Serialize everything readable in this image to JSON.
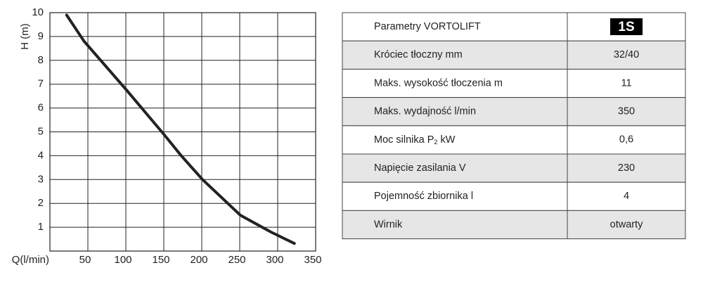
{
  "chart_data": {
    "type": "line",
    "x_label": "Q(l/min)",
    "y_label": "H (m)",
    "x": [
      22,
      45,
      101,
      150,
      173,
      201,
      251,
      291,
      322
    ],
    "values": [
      9.9,
      8.8,
      6.75,
      4.9,
      4.0,
      3.0,
      1.5,
      0.8,
      0.32
    ],
    "color": "#222222",
    "xlim": [
      0,
      350
    ],
    "ylim": [
      0,
      10
    ],
    "xticks": [
      50,
      100,
      150,
      200,
      250,
      300,
      350
    ],
    "yticks": [
      1,
      2,
      3,
      4,
      5,
      6,
      7,
      8,
      9,
      10
    ],
    "grid": true
  },
  "table": {
    "header": {
      "label": "Parametry VORTOLIFT",
      "value": "1S"
    },
    "rows": [
      {
        "label": "Króciec tłoczny mm",
        "value": "32/40"
      },
      {
        "label": "Maks. wysokość tłoczenia  m",
        "value": "11"
      },
      {
        "label": "Maks. wydajność  l/min",
        "value": "350"
      },
      {
        "label": [
          "Moc silnika P",
          "2",
          " kW"
        ],
        "value": "0,6"
      },
      {
        "label": "Napięcie zasilania V",
        "value": "230"
      },
      {
        "label": "Pojemność zbiornika l",
        "value": "4"
      },
      {
        "label": "Wirnik",
        "value": "otwarty"
      }
    ]
  }
}
